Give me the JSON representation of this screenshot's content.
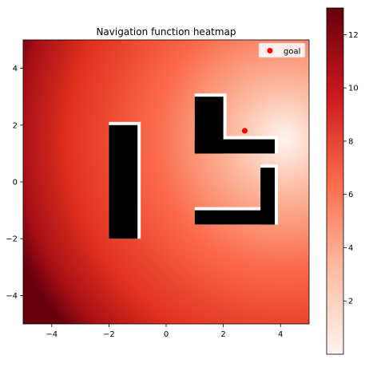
{
  "chart_data": {
    "type": "heatmap",
    "title": "Navigation function heatmap",
    "xlabel": "",
    "ylabel": "",
    "xlim": [
      -5,
      5
    ],
    "ylim": [
      -5,
      5
    ],
    "x_ticks": [
      -4,
      -2,
      0,
      2,
      4
    ],
    "y_ticks": [
      -4,
      -2,
      0,
      2,
      4
    ],
    "grid": false,
    "legend": {
      "position": "top-right",
      "label": "goal"
    },
    "goal": {
      "x": 2.75,
      "y": 1.8,
      "color": "#ff0000"
    },
    "obstacles": [
      {
        "name": "obstacle-left-bar",
        "x0": -2.0,
        "y0": -2.0,
        "x1": -1.0,
        "y1": 2.0
      },
      {
        "name": "obstacle-upper-vertical",
        "x0": 1.0,
        "y0": 1.0,
        "x1": 2.0,
        "y1": 3.0
      },
      {
        "name": "obstacle-upper-horizontal",
        "x0": 1.0,
        "y0": 1.0,
        "x1": 3.8,
        "y1": 1.5
      },
      {
        "name": "obstacle-lower-vertical",
        "x0": 3.3,
        "y0": -1.5,
        "x1": 3.8,
        "y1": 0.5
      },
      {
        "name": "obstacle-lower-horizontal",
        "x0": 1.0,
        "y0": -1.5,
        "x1": 3.8,
        "y1": -1.0
      }
    ],
    "colorbar": {
      "min": 0,
      "max": 13,
      "ticks": [
        2,
        4,
        6,
        8,
        10,
        12
      ],
      "colormap": [
        "#fff5f0",
        "#fcbba1",
        "#fb6a4a",
        "#cb181d",
        "#67000d"
      ]
    }
  }
}
